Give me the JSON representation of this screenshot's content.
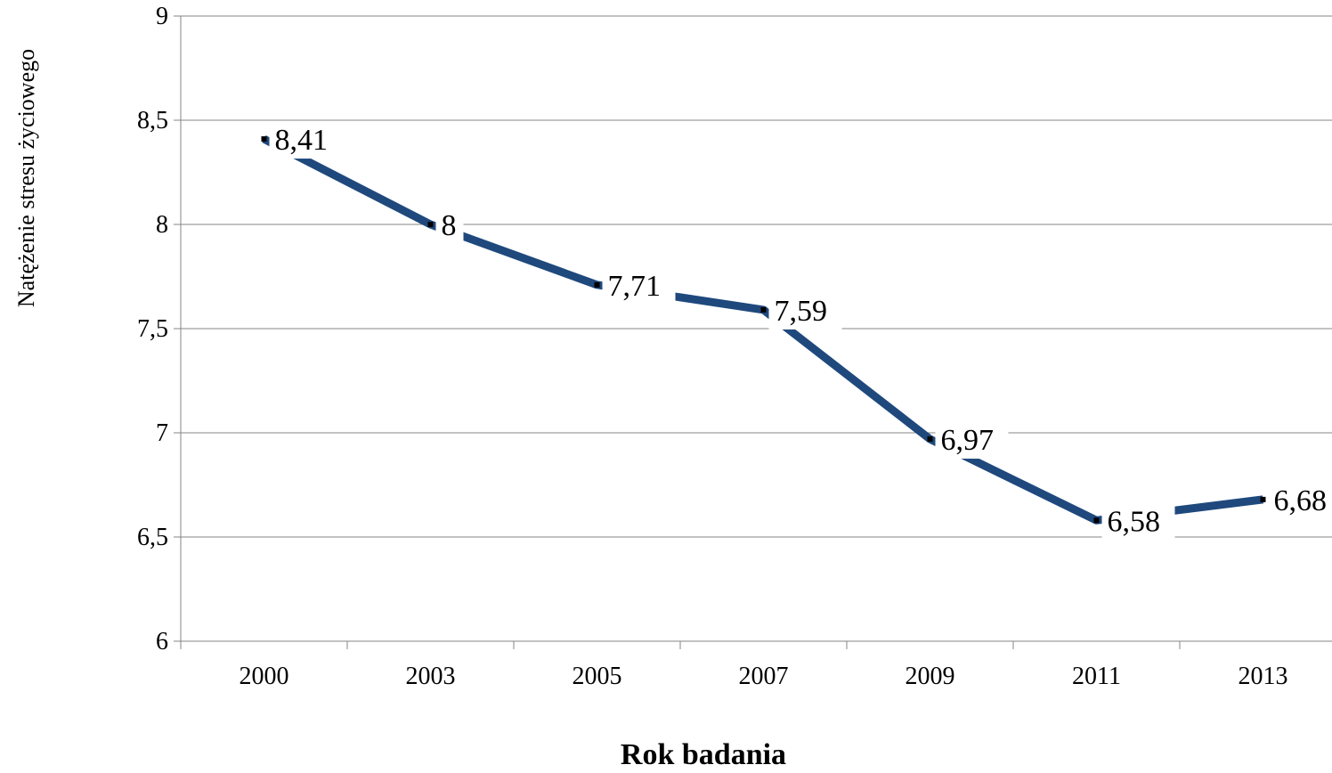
{
  "chart_data": {
    "type": "line",
    "title": "",
    "xlabel": "Rok badania",
    "ylabel": "Natężenie stresu życiowego",
    "categories": [
      "2000",
      "2003",
      "2005",
      "2007",
      "2009",
      "2011",
      "2013"
    ],
    "series": [
      {
        "values": [
          8.41,
          8.0,
          7.71,
          7.59,
          6.97,
          6.58,
          6.68
        ],
        "labels": [
          "8,41",
          "8",
          "7,71",
          "7,59",
          "6,97",
          "6,58",
          "6,68"
        ],
        "color": "#1f497d"
      }
    ],
    "ylim": [
      6,
      9
    ],
    "yticks": [
      6,
      6.5,
      7,
      7.5,
      8,
      8.5,
      9
    ],
    "ytick_labels": [
      "6",
      "6,5",
      "7",
      "7,5",
      "8",
      "8,5",
      "9"
    ],
    "grid": true,
    "legend": "none"
  }
}
